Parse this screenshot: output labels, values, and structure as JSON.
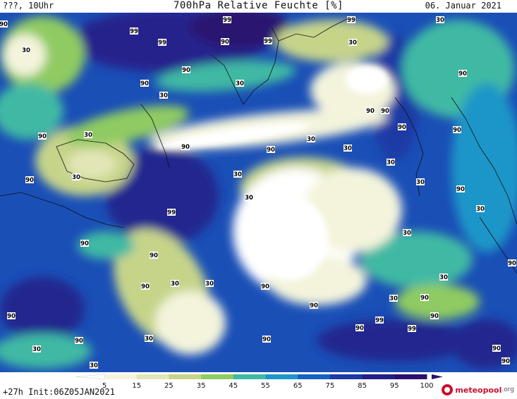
{
  "header": {
    "left": "???, 10Uhr",
    "center": "700hPa Relative Feuchte [%]",
    "right": "06. Januar 2021"
  },
  "footer": {
    "left": "+27h Init:06Z05JAN2021",
    "logo_main": "meteopool",
    "logo_suffix": ".org"
  },
  "colorbar": {
    "ticks": [
      "5",
      "15",
      "25",
      "35",
      "45",
      "55",
      "65",
      "75",
      "85",
      "95",
      "100"
    ],
    "colors": [
      "#ffffff",
      "#f4f4dc",
      "#e2e6b6",
      "#c6d48a",
      "#8fcb62",
      "#3fb9a4",
      "#1e96c8",
      "#1562c0",
      "#1b3aa4",
      "#231f86",
      "#2b0f6e"
    ]
  },
  "contour_labels": [
    {
      "t": "90"
    },
    {
      "t": "99"
    },
    {
      "t": "99"
    },
    {
      "t": "99"
    },
    {
      "t": "99"
    },
    {
      "t": "90"
    },
    {
      "t": "90"
    },
    {
      "t": "30"
    },
    {
      "t": "30"
    },
    {
      "t": "90"
    },
    {
      "t": "99"
    },
    {
      "t": "90"
    },
    {
      "t": "30"
    },
    {
      "t": "30"
    },
    {
      "t": "30"
    },
    {
      "t": "90"
    },
    {
      "t": "90"
    },
    {
      "t": "90"
    },
    {
      "t": "30"
    },
    {
      "t": "30"
    },
    {
      "t": "90"
    },
    {
      "t": "30"
    },
    {
      "t": "90"
    },
    {
      "t": "30"
    },
    {
      "t": "90"
    },
    {
      "t": "30"
    },
    {
      "t": "30"
    },
    {
      "t": "30"
    },
    {
      "t": "90"
    },
    {
      "t": "30"
    },
    {
      "t": "90"
    },
    {
      "t": "30"
    },
    {
      "t": "99"
    },
    {
      "t": "90"
    },
    {
      "t": "30"
    },
    {
      "t": "90"
    },
    {
      "t": "90"
    },
    {
      "t": "90"
    },
    {
      "t": "30"
    },
    {
      "t": "30"
    },
    {
      "t": "90"
    },
    {
      "t": "90"
    },
    {
      "t": "30"
    },
    {
      "t": "90"
    },
    {
      "t": "90"
    },
    {
      "t": "99"
    },
    {
      "t": "90"
    },
    {
      "t": "99"
    },
    {
      "t": "90"
    },
    {
      "t": "30"
    },
    {
      "t": "90"
    },
    {
      "t": "30"
    },
    {
      "t": "90"
    },
    {
      "t": "90"
    },
    {
      "t": "90"
    },
    {
      "t": "90"
    },
    {
      "t": "30"
    },
    {
      "t": "30"
    }
  ]
}
